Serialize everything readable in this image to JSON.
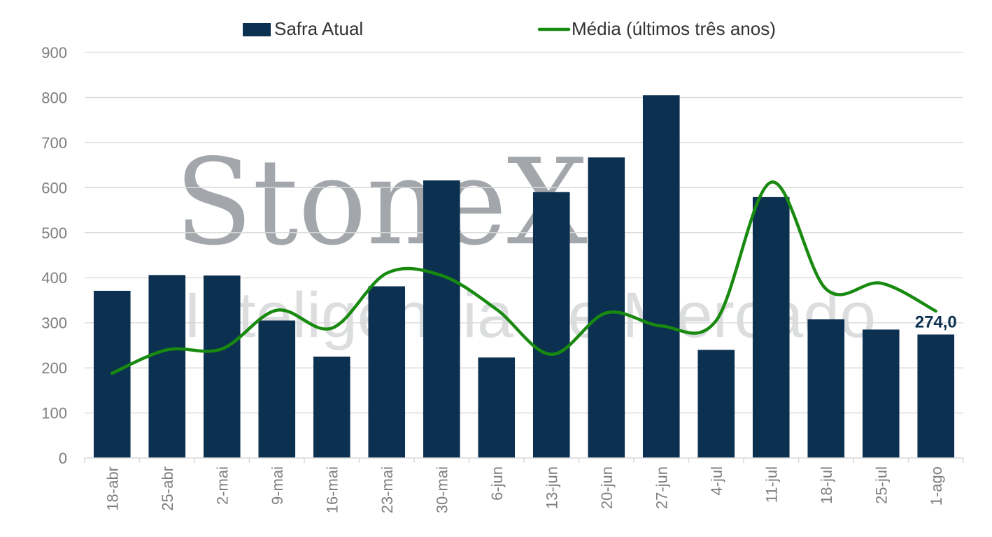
{
  "colors": {
    "bar": "#0c3050",
    "line": "#188a10",
    "grid": "#d9d9d9",
    "tick": "#7f7f7f",
    "label": "#0c3050"
  },
  "watermark": {
    "main": "StoneX",
    "sub": "Inteligência de Mercado"
  },
  "chart_data": {
    "type": "bar",
    "categories": [
      "18-abr",
      "25-abr",
      "2-mai",
      "9-mai",
      "16-mai",
      "23-mai",
      "30-mai",
      "6-jun",
      "13-jun",
      "20-jun",
      "27-jun",
      "4-jul",
      "11-jul",
      "18-jul",
      "25-jul",
      "1-ago"
    ],
    "series": [
      {
        "name": "Safra Atual",
        "type": "bar",
        "values": [
          371,
          406,
          405,
          305,
          225,
          381,
          616,
          223,
          590,
          667,
          805,
          240,
          579,
          308,
          285,
          274
        ]
      },
      {
        "name": "Média (últimos três anos)",
        "type": "line",
        "values": [
          188,
          240,
          242,
          328,
          288,
          410,
          405,
          330,
          230,
          322,
          293,
          305,
          612,
          375,
          388,
          326
        ]
      }
    ],
    "ylim": [
      0,
      900
    ],
    "yticks": [
      "0",
      "100",
      "200",
      "300",
      "400",
      "500",
      "600",
      "700",
      "800",
      "900"
    ],
    "data_label": {
      "series": "Safra Atual",
      "index": 15,
      "text": "274,0"
    },
    "legend_position": "top",
    "grid": true
  }
}
